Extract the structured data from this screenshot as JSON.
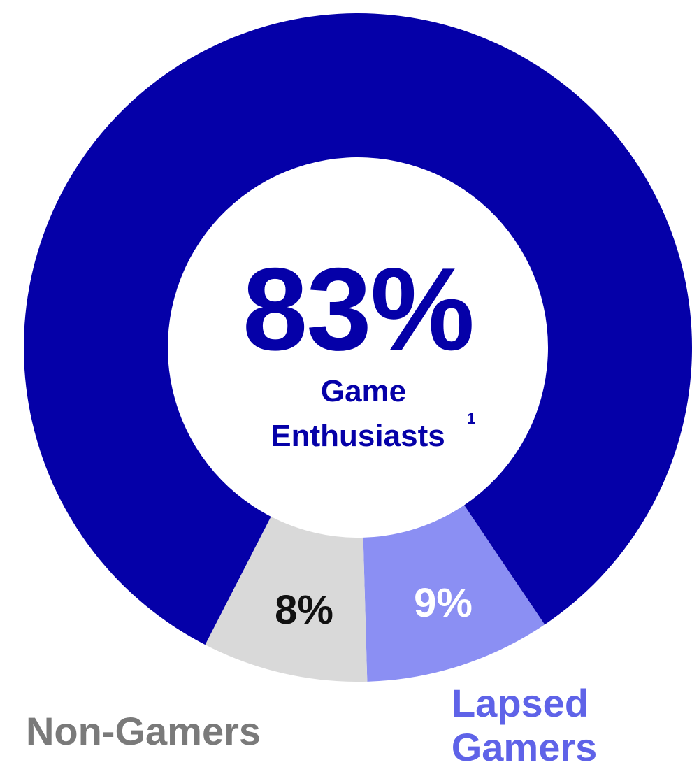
{
  "chart_data": {
    "type": "pie",
    "donut": true,
    "categories": [
      "Game Enthusiasts",
      "Lapsed Gamers",
      "Non-Gamers"
    ],
    "values": [
      83,
      9,
      8
    ],
    "colors": [
      "#0500a8",
      "#8b8ff3",
      "#d9d9d9"
    ],
    "value_labels": [
      "83%",
      "9%",
      "8%"
    ],
    "center_value": "83%",
    "center_label_line1": "Game",
    "center_label_line2": "Enthusiasts",
    "center_label_footnote": "1",
    "legend_lapsed_line1": "Lapsed",
    "legend_lapsed_line2": "Gamers",
    "legend_nongamers": "Non-Gamers",
    "label_colors": {
      "center": "#0500a8",
      "lapsed_value": "#ffffff",
      "nongamers_value": "#111111",
      "lapsed_legend": "#5f63e8",
      "nongamers_legend": "#7a7a7a"
    }
  }
}
